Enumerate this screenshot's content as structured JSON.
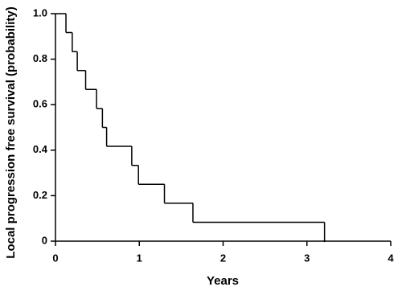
{
  "chart_data": {
    "type": "step",
    "x_label": "Years",
    "y_label": "Local progression free survival (probability)",
    "x": [
      0,
      0.125,
      0.2,
      0.26,
      0.36,
      0.49,
      0.56,
      0.61,
      0.91,
      0.99,
      1.3,
      1.64,
      3.21
    ],
    "values": [
      1,
      0.917,
      0.833,
      0.75,
      0.667,
      0.583,
      0.5,
      0.417,
      0.333,
      0.25,
      0.167,
      0.083,
      0
    ],
    "color": "#000000",
    "xlim": [
      0,
      4
    ],
    "xticks": [
      0,
      1,
      2,
      3,
      4
    ],
    "ylim": [
      0,
      1
    ],
    "yticks": [
      0,
      0.2,
      0.4,
      0.6,
      0.8,
      {
        "value": 1,
        "label": "1.0"
      }
    ],
    "grid": false
  }
}
